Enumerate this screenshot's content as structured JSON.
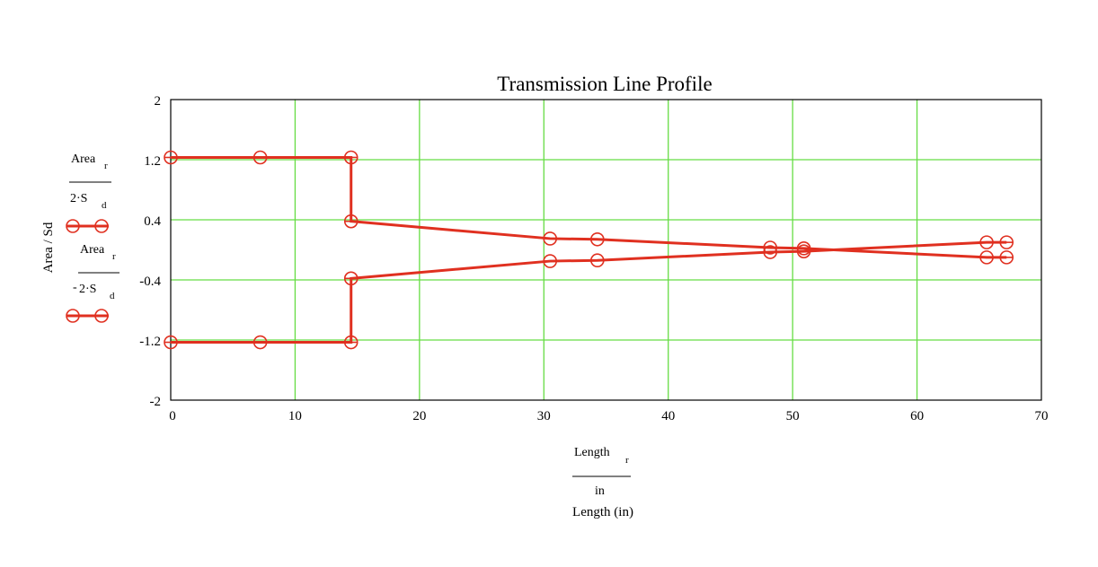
{
  "chart_data": {
    "type": "line",
    "title": "Transmission Line Profile",
    "xlabel_expr": {
      "numerator": "Length",
      "numerator_subscript": "r",
      "denominator": "in"
    },
    "xlabel": "Length (in)",
    "ylabel": "Area / Sd",
    "xlim": [
      0,
      70
    ],
    "ylim": [
      -2,
      2
    ],
    "x_ticks": [
      "0",
      "10",
      "20",
      "30",
      "40",
      "50",
      "60",
      "70"
    ],
    "y_ticks": [
      "2",
      "1.2",
      "0.4",
      "-0.4",
      "-1.2",
      "-2"
    ],
    "y_tick_values": [
      2,
      1.2,
      0.4,
      -0.4,
      -1.2,
      -2
    ],
    "x_grid": [
      10,
      20,
      30,
      40,
      50,
      60
    ],
    "grid": true,
    "grid_color": "#66dd44",
    "series_color": "#e03020",
    "legend": [
      {
        "sign": "",
        "numerator": "Area",
        "numerator_subscript": "r",
        "denominator": "2·S",
        "denominator_subscript": "d"
      },
      {
        "sign": "-",
        "numerator": "Area",
        "numerator_subscript": "r",
        "denominator": "2·S",
        "denominator_subscript": "d"
      }
    ],
    "series": [
      {
        "x": [
          0,
          7.2,
          14.5,
          14.5,
          30.5,
          34.3,
          48.2,
          50.9,
          65.6,
          67.2
        ],
        "y": [
          1.23,
          1.23,
          1.23,
          0.38,
          0.15,
          0.14,
          0.03,
          0.02,
          -0.1,
          -0.1
        ]
      },
      {
        "x": [
          0,
          7.2,
          14.5,
          14.5,
          30.5,
          34.3,
          48.2,
          50.9,
          65.6,
          67.2
        ],
        "y": [
          -1.23,
          -1.23,
          -1.23,
          -0.38,
          -0.15,
          -0.14,
          -0.03,
          -0.02,
          0.1,
          0.1
        ]
      }
    ]
  }
}
